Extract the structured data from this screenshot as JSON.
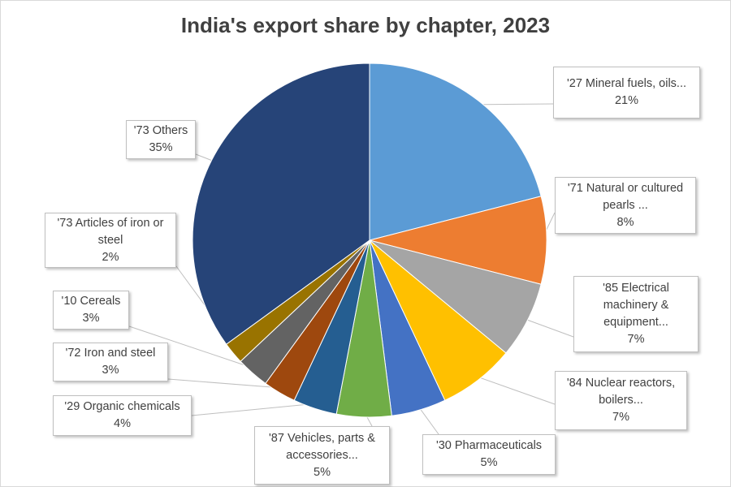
{
  "chart_data": {
    "type": "pie",
    "title": "India's export share by chapter, 2023",
    "slices": [
      {
        "label": "'27 Mineral fuels, oils...",
        "value": 21,
        "display": "21%",
        "color": "#5b9bd5"
      },
      {
        "label": "'71 Natural or cultured pearls ...",
        "value": 8,
        "display": "8%",
        "color": "#ed7d31"
      },
      {
        "label": "'85 Electrical machinery & equipment...",
        "value": 7,
        "display": "7%",
        "color": "#a5a5a5"
      },
      {
        "label": "'84 Nuclear reactors, boilers...",
        "value": 7,
        "display": "7%",
        "color": "#ffc000"
      },
      {
        "label": "'30 Pharmaceuticals",
        "value": 5,
        "display": "5%",
        "color": "#4472c4"
      },
      {
        "label": "'87 Vehicles, parts & accessories...",
        "value": 5,
        "display": "5%",
        "color": "#70ad47"
      },
      {
        "label": "'29 Organic chemicals",
        "value": 4,
        "display": "4%",
        "color": "#255e91"
      },
      {
        "label": "'72 Iron and steel",
        "value": 3,
        "display": "3%",
        "color": "#9e480e"
      },
      {
        "label": "'10 Cereals",
        "value": 3,
        "display": "3%",
        "color": "#636363"
      },
      {
        "label": "'73 Articles of iron or steel",
        "value": 2,
        "display": "2%",
        "color": "#997300"
      },
      {
        "label": "'73 Others",
        "value": 35,
        "display": "35%",
        "color": "#264478"
      }
    ]
  }
}
